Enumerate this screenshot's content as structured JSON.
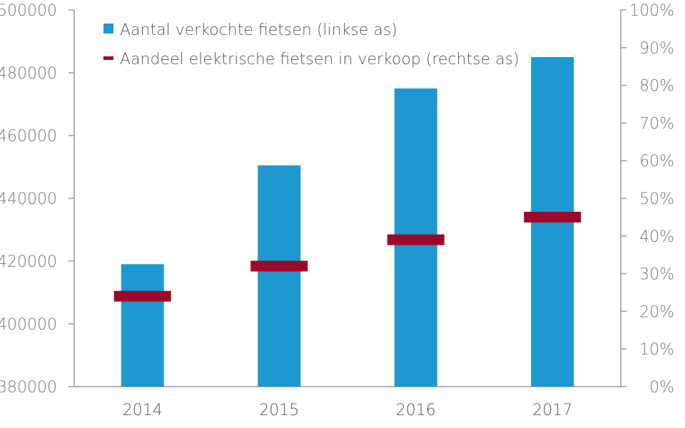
{
  "chart_data": {
    "type": "bar",
    "categories": [
      "2014",
      "2015",
      "2016",
      "2017"
    ],
    "series": [
      {
        "name": "Aantal verkochte fietsen (linkse as)",
        "kind": "bar",
        "axis": "left",
        "color": "#1e98d0",
        "values": [
          419000,
          450500,
          475000,
          485000
        ]
      },
      {
        "name": "Aandeel elektrische fietsen in verkoop (rechtse as)",
        "kind": "marker",
        "axis": "right",
        "color": "#9b0a2a",
        "values": [
          24,
          32,
          39,
          45
        ]
      }
    ],
    "left_axis": {
      "ylim": [
        380000,
        500000
      ],
      "ticks": [
        "380000",
        "400000",
        "420000",
        "440000",
        "460000",
        "480000",
        "500000"
      ]
    },
    "right_axis": {
      "ylim": [
        0,
        100
      ],
      "ticks": [
        "0%",
        "10%",
        "20%",
        "30%",
        "40%",
        "50%",
        "60%",
        "70%",
        "80%",
        "90%",
        "100%"
      ]
    },
    "legend_position": "top-left",
    "grid": false,
    "title": "",
    "xlabel": "",
    "ylabel": ""
  }
}
